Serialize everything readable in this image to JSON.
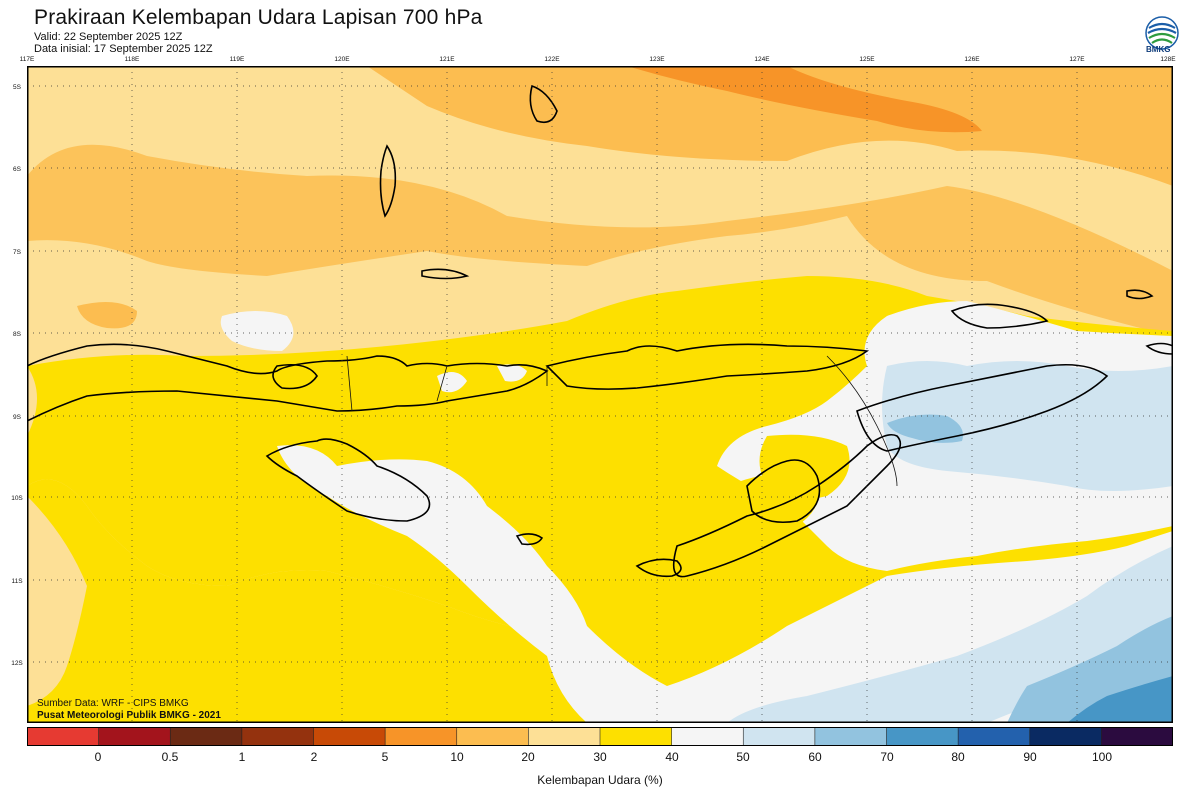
{
  "title": "Prakiraan Kelembapan Udara Lapisan 700 hPa",
  "valid": "Valid: 22 September 2025 12Z",
  "init": "Data inisial: 17 September 2025 12Z",
  "logo": {
    "icon": "bmkg-logo-icon",
    "text": "BMKG"
  },
  "map": {
    "lon_labels": [
      "117E",
      "118E",
      "119E",
      "120E",
      "121E",
      "122E",
      "123E",
      "124E",
      "125E",
      "126E",
      "127E",
      "128E"
    ],
    "lat_labels": [
      "5S",
      "6S",
      "7S",
      "8S",
      "9S",
      "10S",
      "11S",
      "12S"
    ],
    "lon_range": [
      117,
      128
    ],
    "lat_range": [
      -5,
      -12.8
    ],
    "grid": "dotted"
  },
  "credits": {
    "source": "Sumber Data: WRF - CIPS BMKG",
    "org": "Pusat Meteorologi Publik BMKG - 2021"
  },
  "colorbar": {
    "title": "Kelembapan Udara (%)",
    "labels": [
      "0",
      "0.5",
      "1",
      "2",
      "5",
      "10",
      "20",
      "30",
      "40",
      "50",
      "60",
      "70",
      "80",
      "90",
      "100"
    ],
    "colors": [
      "#e63a32",
      "#a3141c",
      "#6b2a14",
      "#94320e",
      "#c84a06",
      "#f79428",
      "#fcbd50",
      "#fde096",
      "#fde000",
      "#f5f5f5",
      "#d0e4f0",
      "#92c3df",
      "#4796c6",
      "#2361ad",
      "#0a2a62",
      "#2b0b3f"
    ]
  }
}
